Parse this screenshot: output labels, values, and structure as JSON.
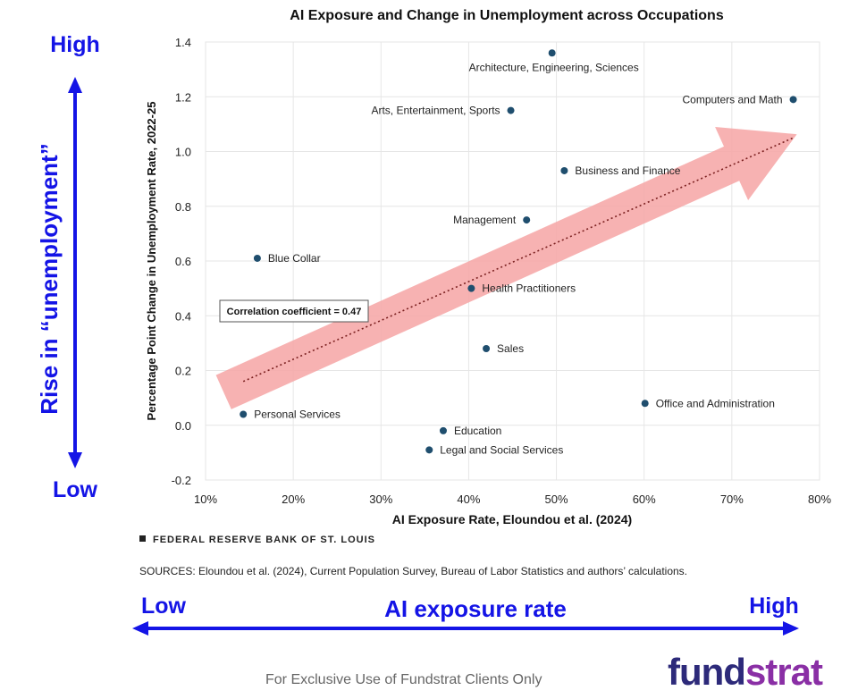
{
  "chart_data": {
    "type": "scatter",
    "title": "AI Exposure and Change in Unemployment across Occupations",
    "xlabel": "AI Exposure Rate, Eloundou et al. (2024)",
    "ylabel": "Percentage Point Change in Unemployment Rate, 2022-25",
    "xlim": [
      10,
      80
    ],
    "ylim": [
      -0.2,
      1.4
    ],
    "x_ticks": [
      "10%",
      "20%",
      "30%",
      "40%",
      "50%",
      "60%",
      "70%",
      "80%"
    ],
    "y_ticks": [
      "-0.2",
      "0.0",
      "0.2",
      "0.4",
      "0.6",
      "0.8",
      "1.0",
      "1.2",
      "1.4"
    ],
    "x_tick_values": [
      10,
      20,
      30,
      40,
      50,
      60,
      70,
      80
    ],
    "y_tick_values": [
      -0.2,
      0.0,
      0.2,
      0.4,
      0.6,
      0.8,
      1.0,
      1.2,
      1.4
    ],
    "points": [
      {
        "label": "Architecture, Engineering, Sciences",
        "x": 49.5,
        "y": 1.36,
        "label_side": "below"
      },
      {
        "label": "Computers and Math",
        "x": 77.0,
        "y": 1.19,
        "label_side": "left"
      },
      {
        "label": "Arts, Entertainment, Sports",
        "x": 44.8,
        "y": 1.15,
        "label_side": "left"
      },
      {
        "label": "Business and Finance",
        "x": 50.9,
        "y": 0.93,
        "label_side": "right"
      },
      {
        "label": "Management",
        "x": 46.6,
        "y": 0.75,
        "label_side": "left"
      },
      {
        "label": "Blue Collar",
        "x": 15.9,
        "y": 0.61,
        "label_side": "right"
      },
      {
        "label": "Health Practitioners",
        "x": 40.3,
        "y": 0.5,
        "label_side": "right"
      },
      {
        "label": "Sales",
        "x": 42.0,
        "y": 0.28,
        "label_side": "right"
      },
      {
        "label": "Office and Administration",
        "x": 60.1,
        "y": 0.08,
        "label_side": "right"
      },
      {
        "label": "Personal Services",
        "x": 14.3,
        "y": 0.04,
        "label_side": "right"
      },
      {
        "label": "Education",
        "x": 37.1,
        "y": -0.02,
        "label_side": "right"
      },
      {
        "label": "Legal and Social Services",
        "x": 35.5,
        "y": -0.09,
        "label_side": "right"
      }
    ],
    "trendline": {
      "x": [
        14.3,
        77.0
      ],
      "y": [
        0.16,
        1.05
      ]
    },
    "annotation": "Correlation coefficient = 0.47",
    "point_color": "#1f4e6e",
    "arrow_color": "#f6a5a5"
  },
  "axis_overlay": {
    "y_high": "High",
    "y_low": "Low",
    "y_title": "Rise in “unemployment”",
    "x_low": "Low",
    "x_high": "High",
    "x_title": "AI exposure rate",
    "color": "#1414e6"
  },
  "fed_label": "FEDERAL RESERVE BANK OF ST. LOUIS",
  "sources": "SOURCES: Eloundou et al. (2024), Current Population Survey, Bureau of Labor Statistics and authors’ calculations.",
  "footer_note": "For Exclusive Use of Fundstrat Clients Only",
  "brand": {
    "part1": "fund",
    "part2": "strat"
  }
}
